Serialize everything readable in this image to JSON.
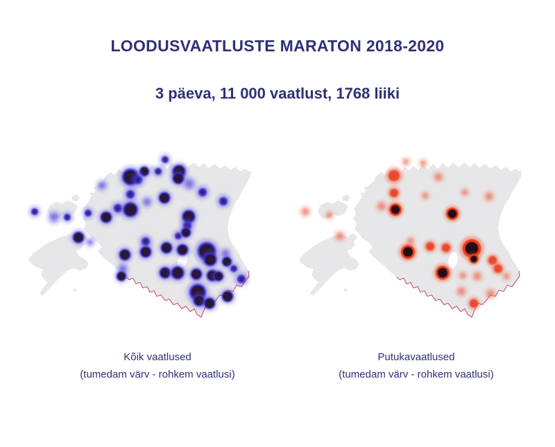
{
  "title": "LOODUSVAATLUSTE MARATON 2018-2020",
  "subtitle": "3 päeva, 11 000 vaatlust, 1768 liiki",
  "colors": {
    "heading_text": "#2e3175",
    "map_land": "#e7e7e9",
    "border_line": "#c24358",
    "lake": "#ffffff",
    "blue": {
      "halo": "#5b4fe6",
      "ring": "#3431d8",
      "mid": "#3a2ed2",
      "core": "#2c1637",
      "light": "#4b3cd8"
    },
    "red": {
      "halo": "#f2694a",
      "ring": "#ee3e1f",
      "mid": "#e8432a",
      "core": "#241012",
      "light": "#e4573f"
    }
  },
  "maps": [
    {
      "id": "all-observations",
      "caption_line1": "Kõik vaatlused",
      "caption_line2": "(tumedam värv - rohkem vaatlusi)",
      "palette": "blue",
      "dots": [
        [
          203,
          12,
          5,
          "mid"
        ],
        [
          193,
          29,
          5,
          "mid"
        ],
        [
          173,
          29,
          6,
          "dark"
        ],
        [
          153,
          37,
          10,
          "dark"
        ],
        [
          164,
          41,
          6,
          "mid"
        ],
        [
          223,
          29,
          8,
          "dark"
        ],
        [
          222,
          39,
          7,
          "dark"
        ],
        [
          238,
          47,
          6,
          "light"
        ],
        [
          112,
          49,
          5,
          "light"
        ],
        [
          153,
          62,
          6,
          "mid"
        ],
        [
          202,
          67,
          7,
          "dark"
        ],
        [
          257,
          59,
          6,
          "mid"
        ],
        [
          287,
          72,
          6,
          "mid"
        ],
        [
          177,
          73,
          5,
          "light"
        ],
        [
          135,
          82,
          6,
          "mid"
        ],
        [
          153,
          84,
          9,
          "dark"
        ],
        [
          118,
          95,
          7,
          "dark"
        ],
        [
          15,
          87,
          5,
          "mid"
        ],
        [
          43,
          95,
          6,
          "light"
        ],
        [
          62,
          95,
          5,
          "mid"
        ],
        [
          92,
          89,
          5,
          "mid"
        ],
        [
          78,
          124,
          7,
          "dark"
        ],
        [
          95,
          131,
          4,
          "light"
        ],
        [
          237,
          94,
          8,
          "dark"
        ],
        [
          235,
          107,
          6,
          "mid"
        ],
        [
          222,
          122,
          5,
          "mid"
        ],
        [
          233,
          117,
          6,
          "dark"
        ],
        [
          175,
          130,
          6,
          "mid"
        ],
        [
          175,
          145,
          7,
          "dark"
        ],
        [
          145,
          149,
          7,
          "dark"
        ],
        [
          205,
          139,
          7,
          "dark"
        ],
        [
          228,
          142,
          7,
          "dark"
        ],
        [
          263,
          144,
          11,
          "dark"
        ],
        [
          268,
          156,
          8,
          "dark"
        ],
        [
          290,
          147,
          5,
          "light"
        ],
        [
          292,
          159,
          6,
          "dark"
        ],
        [
          302,
          169,
          5,
          "mid"
        ],
        [
          313,
          184,
          6,
          "mid"
        ],
        [
          142,
          169,
          5,
          "light"
        ],
        [
          140,
          180,
          6,
          "dark"
        ],
        [
          203,
          175,
          7,
          "dark"
        ],
        [
          221,
          175,
          8,
          "dark"
        ],
        [
          248,
          177,
          7,
          "dark"
        ],
        [
          271,
          179,
          7,
          "dark"
        ],
        [
          280,
          180,
          6,
          "dark"
        ],
        [
          250,
          203,
          10,
          "dark"
        ],
        [
          252,
          215,
          7,
          "dark"
        ],
        [
          267,
          219,
          7,
          "dark"
        ],
        [
          293,
          209,
          7,
          "dark"
        ]
      ]
    },
    {
      "id": "insect-observations",
      "caption_line1": "Putukavaatlused",
      "caption_line2": "(tumedam värv - rohkem vaatlusi)",
      "palette": "red",
      "dots": [
        [
          143,
          35,
          8,
          "mid"
        ],
        [
          160,
          15,
          4,
          "light"
        ],
        [
          185,
          17,
          4,
          "light"
        ],
        [
          207,
          37,
          5,
          "light"
        ],
        [
          143,
          60,
          6,
          "mid"
        ],
        [
          188,
          64,
          4,
          "light"
        ],
        [
          125,
          79,
          5,
          "light"
        ],
        [
          145,
          84,
          8,
          "dark"
        ],
        [
          227,
          90,
          8,
          "dark"
        ],
        [
          245,
          59,
          4,
          "light"
        ],
        [
          280,
          65,
          5,
          "light"
        ],
        [
          15,
          87,
          5,
          "light"
        ],
        [
          50,
          92,
          4,
          "light"
        ],
        [
          65,
          122,
          5,
          "light"
        ],
        [
          167,
          129,
          4,
          "light"
        ],
        [
          163,
          145,
          9,
          "dark"
        ],
        [
          195,
          137,
          6,
          "mid"
        ],
        [
          218,
          139,
          6,
          "mid"
        ],
        [
          255,
          140,
          12,
          "dark"
        ],
        [
          258,
          155,
          6,
          "dark"
        ],
        [
          285,
          157,
          6,
          "mid"
        ],
        [
          293,
          169,
          6,
          "mid"
        ],
        [
          213,
          175,
          9,
          "dark"
        ],
        [
          242,
          179,
          4,
          "light"
        ],
        [
          263,
          180,
          5,
          "light"
        ],
        [
          240,
          202,
          5,
          "light"
        ],
        [
          282,
          205,
          5,
          "light"
        ],
        [
          258,
          219,
          6,
          "mid"
        ],
        [
          305,
          180,
          4,
          "light"
        ]
      ]
    }
  ]
}
